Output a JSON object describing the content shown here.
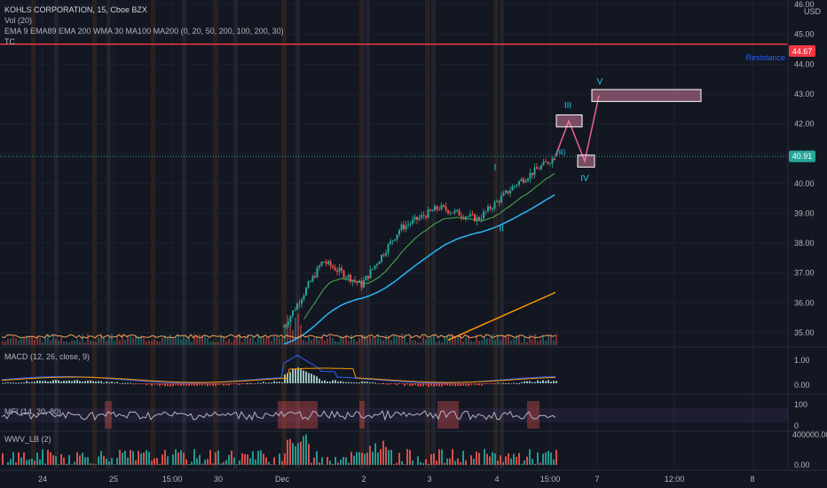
{
  "header": {
    "symbol_line": "KOHLS CORPORATION, 15, Cboe BZX",
    "studies": [
      "Vol (20)",
      "EMA 9 EMA89 EMA 200 WMA 30 MA100 MA200 (0, 20, 50, 200, 100, 200, 30)",
      "TC"
    ]
  },
  "currency": "USD",
  "price_scale": {
    "ticks": [
      "46.00",
      "45.00",
      "44.00",
      "43.00",
      "42.00",
      "41.00",
      "40.00",
      "39.00",
      "38.00",
      "37.00",
      "36.00",
      "35.00"
    ],
    "ylim": [
      34.7,
      46.3
    ],
    "resistance_value": "44.67",
    "last_price": "40.91"
  },
  "resistance_label": "Resistance",
  "time_axis": [
    "24",
    "25",
    "15:00",
    "30",
    "Dec",
    "2",
    "3",
    "4",
    "15:00",
    "7",
    "12:00",
    "8"
  ],
  "panes": {
    "macd": {
      "label": "MACD (12, 26, close, 9)",
      "ticks": [
        "1.00",
        "0.00"
      ]
    },
    "mfi": {
      "label": "MFI (14, 20, 80)",
      "ticks": [
        "100",
        "0"
      ]
    },
    "wwv": {
      "label": "WWV_LB (2)",
      "ticks": [
        "400000.00",
        "0.00"
      ]
    }
  },
  "wave_labels": [
    "I",
    "II",
    "III",
    "IV",
    "V",
    "(iii)"
  ],
  "colors": {
    "background": "#131722",
    "up": "#26a69a",
    "down": "#ef5350",
    "resistance": "#f23645",
    "ema_fast": "#4caf50",
    "ema_slow": "#29b6f6",
    "ma_long": "#ff9800",
    "projection": "#f06292",
    "macd_line": "#2962ff",
    "signal_line": "#ff9800",
    "mfi_line": "#b2b5be",
    "wave_label": "#26c6da"
  },
  "chart_data": {
    "type": "candlestick",
    "title": "KOHLS CORPORATION, 15, Cboe BZX",
    "x_categories": [
      "24",
      "25",
      "15:00",
      "30",
      "Dec",
      "2",
      "3",
      "4",
      "15:00",
      "7",
      "12:00",
      "8"
    ],
    "ylim": [
      34.7,
      46.3
    ],
    "resistance": 44.67,
    "last_price": 40.91,
    "price_path": [
      {
        "t": "Dec",
        "price": 35.2
      },
      {
        "t": "Dec",
        "price": 37.4
      },
      {
        "t": "2",
        "price": 36.6
      },
      {
        "t": "2",
        "price": 38.5
      },
      {
        "t": "3",
        "price": 39.2
      },
      {
        "t": "4",
        "price": 38.8
      },
      {
        "t": "4",
        "price": 40.0
      },
      {
        "t": "15:00",
        "price": 40.91
      }
    ],
    "projection_boxes": [
      {
        "label": "III",
        "low": 41.9,
        "high": 42.3
      },
      {
        "label": "IV",
        "low": 40.55,
        "high": 40.95
      },
      {
        "label": "V",
        "low": 42.75,
        "high": 43.15
      }
    ],
    "grid": true
  }
}
